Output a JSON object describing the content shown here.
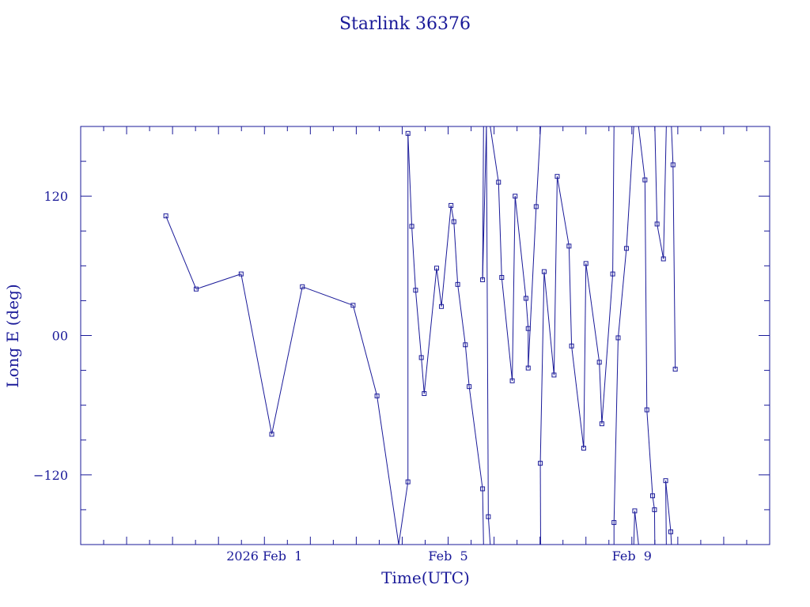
{
  "chart_data": {
    "type": "line",
    "title": "Starlink 36376",
    "xlabel": "Time(UTC)",
    "ylabel": "Long E (deg)",
    "xlim": [
      "2026-01-28T00:00",
      "2026-02-12T00:00"
    ],
    "ylim": [
      -180,
      180
    ],
    "x_ticks": [
      {
        "x": "2026-02-01T00:00",
        "label": "2026 Feb  1"
      },
      {
        "x": "2026-02-05T00:00",
        "label": "Feb  5"
      },
      {
        "x": "2026-02-09T00:00",
        "label": "Feb  9"
      }
    ],
    "y_ticks": [
      {
        "y": 120,
        "label": "120"
      },
      {
        "y": 0,
        "label": "00"
      },
      {
        "y": -120,
        "label": "−120"
      }
    ],
    "grid": false,
    "legend": "none",
    "series": [
      {
        "wrap_longitude": true,
        "points": [
          {
            "x": "2026-01-29T20:30",
            "y": 103
          },
          {
            "x": "2026-01-30T12:20",
            "y": 40
          },
          {
            "x": "2026-01-31T11:50",
            "y": 53
          },
          {
            "x": "2026-02-01T03:50",
            "y": -85
          },
          {
            "x": "2026-02-01T19:50",
            "y": 42
          },
          {
            "x": "2026-02-02T22:20",
            "y": 26
          },
          {
            "x": "2026-02-03T10:50",
            "y": -52
          },
          {
            "x": "2026-02-03T22:10",
            "y": -180
          },
          {
            "x": "2026-02-04T03:00",
            "y": -126
          },
          {
            "x": "2026-02-04T03:00",
            "y": 174
          },
          {
            "x": "2026-02-04T05:00",
            "y": 94
          },
          {
            "x": "2026-02-04T07:00",
            "y": 39
          },
          {
            "x": "2026-02-04T10:00",
            "y": -19
          },
          {
            "x": "2026-02-04T11:30",
            "y": -50
          },
          {
            "x": "2026-02-04T18:00",
            "y": 58
          },
          {
            "x": "2026-02-04T20:30",
            "y": 25
          },
          {
            "x": "2026-02-05T01:30",
            "y": 112
          },
          {
            "x": "2026-02-05T03:00",
            "y": 98
          },
          {
            "x": "2026-02-05T05:00",
            "y": 44
          },
          {
            "x": "2026-02-05T09:00",
            "y": -8
          },
          {
            "x": "2026-02-05T11:00",
            "y": -44
          },
          {
            "x": "2026-02-05T18:00",
            "y": -132
          },
          {
            "x": "2026-02-05T18:30",
            "y": -180
          },
          {
            "x": "2026-02-05T18:30",
            "y": 180
          },
          {
            "x": "2026-02-05T18:00",
            "y": 48
          },
          {
            "x": "2026-02-05T20:00",
            "y": 180
          },
          {
            "x": "2026-02-05T21:00",
            "y": -156
          },
          {
            "x": "2026-02-05T22:00",
            "y": -180
          },
          {
            "x": "2026-02-05T22:00",
            "y": 180
          },
          {
            "x": "2026-02-06T02:20",
            "y": 132
          },
          {
            "x": "2026-02-06T04:00",
            "y": 50
          },
          {
            "x": "2026-02-06T09:30",
            "y": -39
          },
          {
            "x": "2026-02-06T11:00",
            "y": 120
          },
          {
            "x": "2026-02-06T16:40",
            "y": 32
          },
          {
            "x": "2026-02-06T17:50",
            "y": 6
          },
          {
            "x": "2026-02-06T17:50",
            "y": -28
          },
          {
            "x": "2026-02-06T22:00",
            "y": 111
          },
          {
            "x": "2026-02-07T00:20",
            "y": 180
          },
          {
            "x": "2026-02-07T00:20",
            "y": -180
          },
          {
            "x": "2026-02-07T00:10",
            "y": -110
          },
          {
            "x": "2026-02-07T02:10",
            "y": 55
          },
          {
            "x": "2026-02-07T07:20",
            "y": -34
          },
          {
            "x": "2026-02-07T09:00",
            "y": 137
          },
          {
            "x": "2026-02-07T15:10",
            "y": 77
          },
          {
            "x": "2026-02-07T16:30",
            "y": -9
          },
          {
            "x": "2026-02-07T22:50",
            "y": -97
          },
          {
            "x": "2026-02-08T00:00",
            "y": 62
          },
          {
            "x": "2026-02-08T07:00",
            "y": -23
          },
          {
            "x": "2026-02-08T08:20",
            "y": -76
          },
          {
            "x": "2026-02-08T14:00",
            "y": 53
          },
          {
            "x": "2026-02-08T14:40",
            "y": 180
          },
          {
            "x": "2026-02-08T14:40",
            "y": -180
          },
          {
            "x": "2026-02-08T14:40",
            "y": -161
          },
          {
            "x": "2026-02-08T16:50",
            "y": -2
          },
          {
            "x": "2026-02-08T21:10",
            "y": 75
          },
          {
            "x": "2026-02-09T01:00",
            "y": 180
          },
          {
            "x": "2026-02-09T01:00",
            "y": -180
          },
          {
            "x": "2026-02-09T01:30",
            "y": -151
          },
          {
            "x": "2026-02-09T03:30",
            "y": -180
          },
          {
            "x": "2026-02-09T03:30",
            "y": 180
          },
          {
            "x": "2026-02-09T06:50",
            "y": 134
          },
          {
            "x": "2026-02-09T07:50",
            "y": -64
          },
          {
            "x": "2026-02-09T10:50",
            "y": -138
          },
          {
            "x": "2026-02-09T11:50",
            "y": -150
          },
          {
            "x": "2026-02-09T12:00",
            "y": -180
          },
          {
            "x": "2026-02-09T12:00",
            "y": 180
          },
          {
            "x": "2026-02-09T13:10",
            "y": 96
          },
          {
            "x": "2026-02-09T16:30",
            "y": 66
          },
          {
            "x": "2026-02-09T18:00",
            "y": 180
          },
          {
            "x": "2026-02-09T18:00",
            "y": -180
          },
          {
            "x": "2026-02-09T17:40",
            "y": -125
          },
          {
            "x": "2026-02-09T20:20",
            "y": -169
          },
          {
            "x": "2026-02-09T20:40",
            "y": -180
          },
          {
            "x": "2026-02-09T20:40",
            "y": 180
          },
          {
            "x": "2026-02-09T21:30",
            "y": 147
          },
          {
            "x": "2026-02-09T22:40",
            "y": -29
          }
        ]
      }
    ]
  }
}
